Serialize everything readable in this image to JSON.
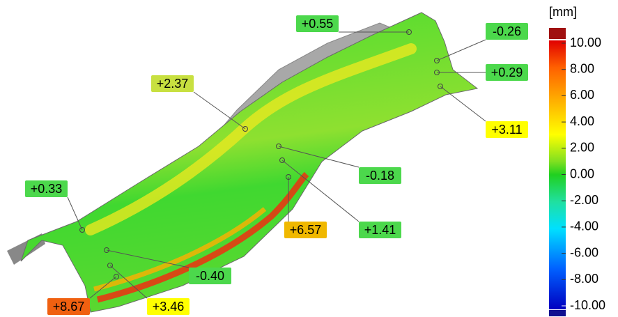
{
  "scale": {
    "unit": "[mm]",
    "ticks": [
      "10.00",
      "8.00",
      "6.00",
      "4.00",
      "2.00",
      "0.00",
      "-2.00",
      "-4.00",
      "-6.00",
      "-8.00",
      "-10.00"
    ]
  },
  "callouts": [
    "+0.55",
    "-0.26",
    "+0.29",
    "+3.11",
    "+2.37",
    "-0.18",
    "+6.57",
    "+1.41",
    "+0.33",
    "-0.40",
    "+8.67",
    "+3.46"
  ]
}
